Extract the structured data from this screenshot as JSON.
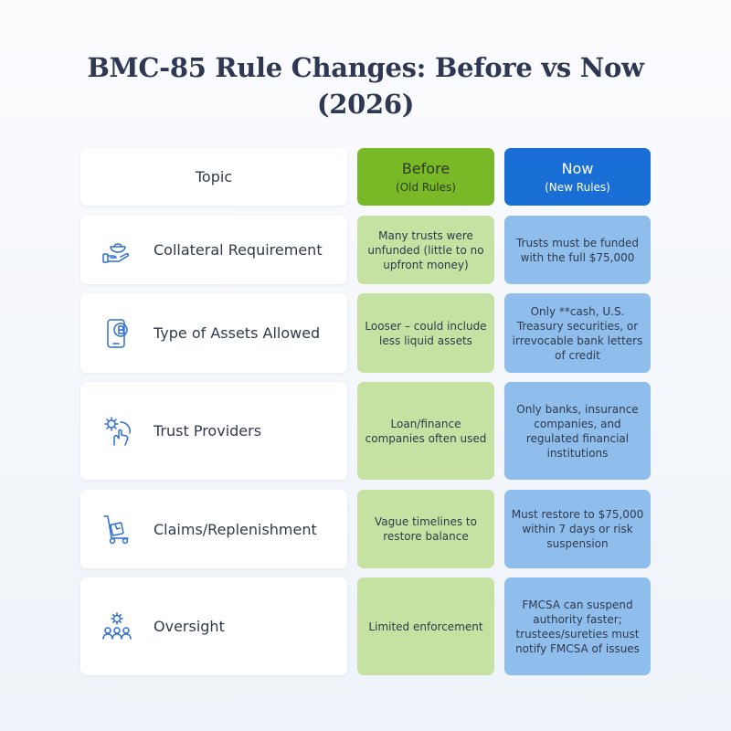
{
  "title_line1": "BMC-85 Rule Changes: Before vs Now",
  "title_line2": "(2026)",
  "header": {
    "topic": "Topic",
    "before": "Before",
    "before_sub": "(Old Rules)",
    "now": "Now",
    "now_sub": "(New Rules)"
  },
  "rows": [
    {
      "topic": "Collateral Requirement",
      "icon": "hand-holding-bowl-icon",
      "before": "Many trusts were unfunded (little to no upfront money)",
      "now": "Trusts must be funded with the full $75,000"
    },
    {
      "topic": "Type of Assets Allowed",
      "icon": "phone-coin-icon",
      "before": "Looser – could include less liquid assets",
      "now": "Only **cash, U.S. Treasury securities, or irrevocable bank letters of credit"
    },
    {
      "topic": "Trust Providers",
      "icon": "hand-gear-icon",
      "before": "Loan/finance companies often used",
      "now": "Only banks, insurance companies, and regulated financial institutions"
    },
    {
      "topic": "Claims/Replenishment",
      "icon": "hand-truck-icon",
      "before": "Vague timelines to restore balance",
      "now": "Must restore to $75,000 within 7 days or risk suspension"
    },
    {
      "topic": "Oversight",
      "icon": "team-gear-icon",
      "before": "Limited enforcement",
      "now": "FMCSA can suspend authority faster; trustees/sureties must notify FMCSA of issues"
    }
  ],
  "colors": {
    "before_header": "#79b928",
    "now_header": "#1a6fd7",
    "before_cell": "#c6e2a2",
    "now_cell": "#8fbdec",
    "icon_stroke": "#2f6fd0"
  }
}
